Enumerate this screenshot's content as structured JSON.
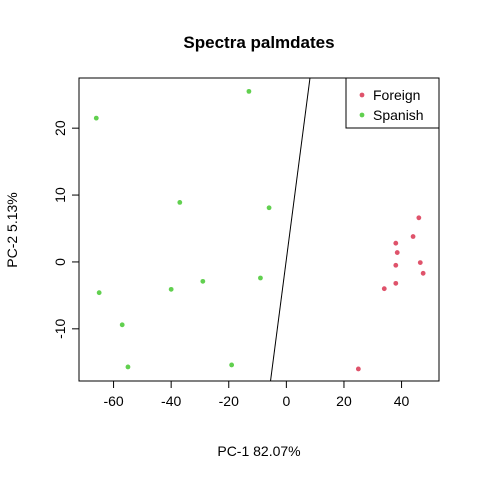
{
  "chart_data": {
    "type": "scatter",
    "title": "Spectra palmdates",
    "xlabel": "PC-1 82.07%",
    "ylabel": "PC-2 5.13%",
    "xlim": [
      -72,
      53
    ],
    "ylim": [
      -17.8,
      27.5
    ],
    "xticks": [
      -60,
      -40,
      -20,
      0,
      20,
      40
    ],
    "yticks": [
      -10,
      0,
      10,
      20
    ],
    "grid": false,
    "legend_position": "top-right",
    "series": [
      {
        "name": "Foreign",
        "color": "#DF536B",
        "points": [
          [
            46,
            6.6
          ],
          [
            44,
            3.8
          ],
          [
            38,
            2.8
          ],
          [
            38.5,
            1.4
          ],
          [
            46.5,
            -0.1
          ],
          [
            38,
            -0.5
          ],
          [
            47.5,
            -1.7
          ],
          [
            38,
            -3.2
          ],
          [
            34,
            -4
          ],
          [
            25,
            -16
          ]
        ]
      },
      {
        "name": "Spanish",
        "color": "#61D04F",
        "points": [
          [
            -13,
            25.5
          ],
          [
            -66,
            21.5
          ],
          [
            -37,
            8.9
          ],
          [
            -6,
            8.1
          ],
          [
            -9,
            -2.4
          ],
          [
            -29,
            -2.9
          ],
          [
            -40,
            -4.1
          ],
          [
            -65,
            -4.6
          ],
          [
            -57,
            -9.4
          ],
          [
            -55,
            -15.7
          ],
          [
            -19,
            -15.4
          ]
        ]
      }
    ],
    "decision_line": {
      "from": [
        -5.5,
        -17.8
      ],
      "to": [
        8.2,
        27.5
      ]
    }
  }
}
